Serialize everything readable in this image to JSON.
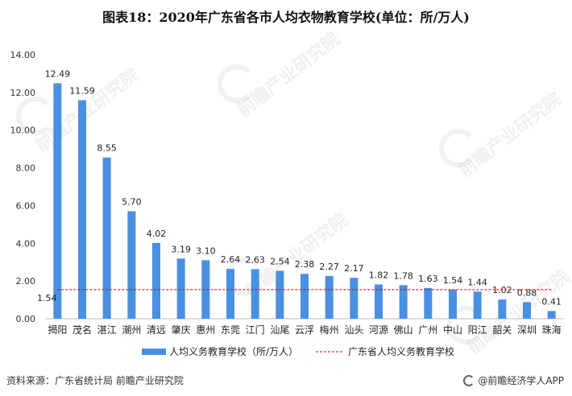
{
  "title": "图表18：2020年广东省各市人均衣物教育学校(单位：所/万人)",
  "source": "资料来源：广东省统计局 前瞻产业研究院",
  "brand": "@前瞻经济学人APP",
  "watermark": "前瞻产业研究院",
  "colors": {
    "bar": "#4a90e2",
    "refline": "#d0021b",
    "axis": "#bbbbbb"
  },
  "chart_data": {
    "type": "bar",
    "categories": [
      "揭阳",
      "茂名",
      "湛江",
      "潮州",
      "清远",
      "肇庆",
      "惠州",
      "东莞",
      "江门",
      "汕尾",
      "云浮",
      "梅州",
      "汕头",
      "河源",
      "佛山",
      "广州",
      "中山",
      "阳江",
      "韶关",
      "深圳",
      "珠海"
    ],
    "series": [
      {
        "name": "人均义务教育学校（所/万人）",
        "type": "bar",
        "values": [
          12.49,
          11.59,
          8.55,
          5.7,
          4.02,
          3.19,
          3.1,
          2.64,
          2.63,
          2.54,
          2.38,
          2.27,
          2.17,
          1.82,
          1.78,
          1.63,
          1.54,
          1.44,
          1.02,
          0.88,
          0.41
        ]
      },
      {
        "name": "广东省人均义务教育学校",
        "type": "line",
        "value": 1.54
      }
    ],
    "value_labels": [
      "12.49",
      "11.59",
      "8.55",
      "5.70",
      "4.02",
      "3.19",
      "3.10",
      "2.64",
      "2.63",
      "2.54",
      "2.38",
      "2.27",
      "2.17",
      "1.82",
      "1.78",
      "1.63",
      "1.54",
      "1.44",
      "1.02",
      "0.88",
      "0.41"
    ],
    "refline_label": "1.54",
    "yticks": [
      "0.00",
      "2.00",
      "4.00",
      "6.00",
      "8.00",
      "10.00",
      "12.00",
      "14.00"
    ],
    "ylim": [
      0,
      14
    ],
    "grid": false,
    "legend_position": "bottom"
  }
}
